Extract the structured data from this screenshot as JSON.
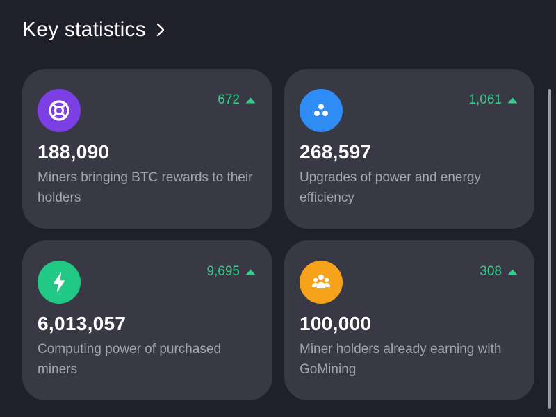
{
  "header": {
    "title": "Key statistics"
  },
  "cards": [
    {
      "value": "188,090",
      "description": "Miners bringing BTC rewards to their holders",
      "delta": "672",
      "icon": "miner-icon",
      "icon_color": "#7b3fe4"
    },
    {
      "value": "268,597",
      "description": "Upgrades of power and energy efficiency",
      "delta": "1,061",
      "icon": "upgrade-icon",
      "icon_color": "#2f8cf5"
    },
    {
      "value": "6,013,057",
      "description": "Computing power of purchased miners",
      "delta": "9,695",
      "icon": "lightning-icon",
      "icon_color": "#22c985"
    },
    {
      "value": "100,000",
      "description": "Miner holders already earning with GoMining",
      "delta": "308",
      "icon": "holders-icon",
      "icon_color": "#f7a21b"
    }
  ],
  "colors": {
    "background": "#1f2029",
    "card": "#383944",
    "positive": "#2fd08a",
    "muted_text": "#a3a4b0"
  }
}
